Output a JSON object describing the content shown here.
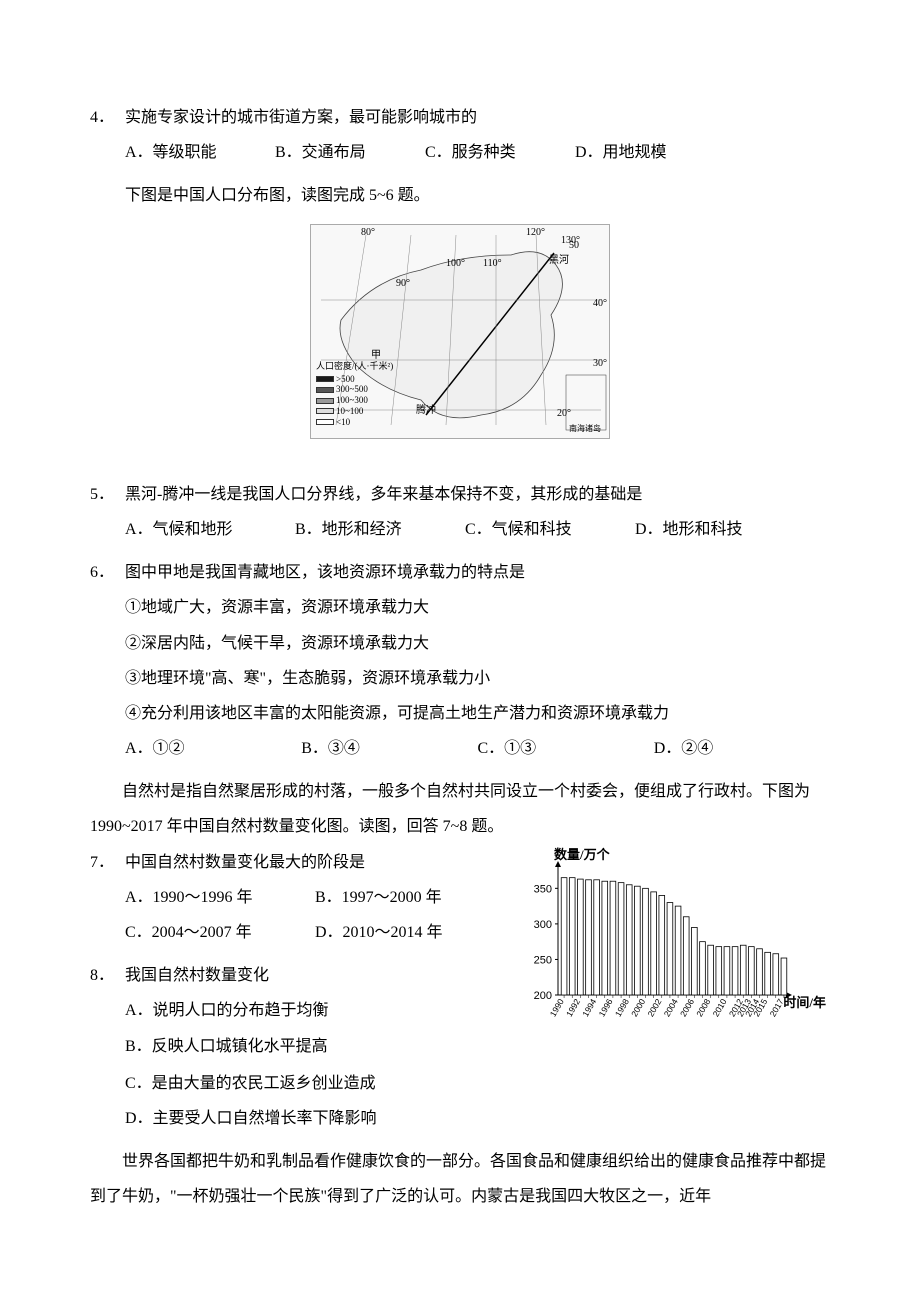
{
  "q4": {
    "num": "4．",
    "text": "实施专家设计的城市街道方案，最可能影响城市的",
    "optA": "A．等级职能",
    "optB": "B．交通布局",
    "optC": "C．服务种类",
    "optD": "D．用地规模"
  },
  "intro56": "下图是中国人口分布图，读图完成 5~6 题。",
  "map": {
    "lon_80": "80°",
    "lon_90": "90°",
    "lon_100": "100°",
    "lon_110": "110°",
    "lon_120": "120°",
    "lon_130": "130°",
    "lat_50": "50",
    "lat_40": "40°",
    "lat_30": "30°",
    "lat_20": "20°",
    "jia": "甲",
    "heihe": "黑河",
    "tengchong": "腾冲",
    "legend_title": "人口密度/(人·千米²)",
    "legend_items": [
      {
        "label": ">500",
        "color": "#181818"
      },
      {
        "label": "300~500",
        "color": "#555555"
      },
      {
        "label": "100~300",
        "color": "#999999"
      },
      {
        "label": "10~100",
        "color": "#dddddd"
      },
      {
        "label": "<10",
        "color": "#ffffff"
      }
    ],
    "inset": "南海诸岛"
  },
  "q5": {
    "num": "5．",
    "text": "黑河-腾冲一线是我国人口分界线，多年来基本保持不变，其形成的基础是",
    "optA": "A．气候和地形",
    "optB": "B．地形和经济",
    "optC": "C．气候和科技",
    "optD": "D．地形和科技"
  },
  "q6": {
    "num": "6．",
    "text": "图中甲地是我国青藏地区，该地资源环境承载力的特点是",
    "s1": "①地域广大，资源丰富，资源环境承载力大",
    "s2": "②深居内陆，气候干旱，资源环境承载力大",
    "s3": "③地理环境\"高、寒\"，生态脆弱，资源环境承载力小",
    "s4": "④充分利用该地区丰富的太阳能资源，可提高土地生产潜力和资源环境承载力",
    "optA": "A．①②",
    "optB": "B．③④",
    "optC": "C．①③",
    "optD": "D．②④"
  },
  "intro78": "自然村是指自然聚居形成的村落，一般多个自然村共同设立一个村委会，便组成了行政村。下图为 1990~2017 年中国自然村数量变化图。读图，回答 7~8 题。",
  "q7": {
    "num": "7．",
    "text": "中国自然村数量变化最大的阶段是",
    "optA": "A．1990～1996 年",
    "optB": "B．1997～2000 年",
    "optC": "C．2004～2007 年",
    "optD": "D．2010～2014 年"
  },
  "q8": {
    "num": "8．",
    "text": "我国自然村数量变化",
    "optA": "A．说明人口的分布趋于均衡",
    "optB": "B．反映人口城镇化水平提高",
    "optC": "C．是由大量的农民工返乡创业造成",
    "optD": "D．主要受人口自然增长率下降影响"
  },
  "intro9": "世界各国都把牛奶和乳制品看作健康饮食的一部分。各国食品和健康组织给出的健康食品推荐中都提到了牛奶，\"一杯奶强壮一个民族\"得到了广泛的认可。内蒙古是我国四大牧区之一，近年",
  "chart": {
    "y_title": "数量/万个",
    "x_title": "时间/年",
    "y_ticks": [
      200,
      250,
      300,
      350
    ],
    "y_min": 200,
    "y_max": 380,
    "x_labels": [
      "1990",
      "1992",
      "1994",
      "1996",
      "1998",
      "2000",
      "2002",
      "2004",
      "2006",
      "2008",
      "2010",
      "2012",
      "2013",
      "2014",
      "2015",
      "2017"
    ],
    "bars": [
      {
        "year": "1990",
        "value": 365
      },
      {
        "year": "1991",
        "value": 365
      },
      {
        "year": "1992",
        "value": 363
      },
      {
        "year": "1993",
        "value": 362
      },
      {
        "year": "1994",
        "value": 362
      },
      {
        "year": "1995",
        "value": 360
      },
      {
        "year": "1996",
        "value": 360
      },
      {
        "year": "1997",
        "value": 358
      },
      {
        "year": "1998",
        "value": 355
      },
      {
        "year": "1999",
        "value": 353
      },
      {
        "year": "2000",
        "value": 350
      },
      {
        "year": "2001",
        "value": 345
      },
      {
        "year": "2002",
        "value": 340
      },
      {
        "year": "2003",
        "value": 330
      },
      {
        "year": "2004",
        "value": 325
      },
      {
        "year": "2005",
        "value": 310
      },
      {
        "year": "2006",
        "value": 295
      },
      {
        "year": "2007",
        "value": 275
      },
      {
        "year": "2008",
        "value": 270
      },
      {
        "year": "2009",
        "value": 268
      },
      {
        "year": "2010",
        "value": 268
      },
      {
        "year": "2011",
        "value": 268
      },
      {
        "year": "2012",
        "value": 270
      },
      {
        "year": "2013",
        "value": 268
      },
      {
        "year": "2014",
        "value": 265
      },
      {
        "year": "2015",
        "value": 260
      },
      {
        "year": "2016",
        "value": 258
      },
      {
        "year": "2017",
        "value": 252
      }
    ],
    "bar_color": "#ffffff",
    "bar_stroke": "#000000",
    "axis_color": "#000000",
    "tick_font_size": 10,
    "title_font_size": 13
  }
}
